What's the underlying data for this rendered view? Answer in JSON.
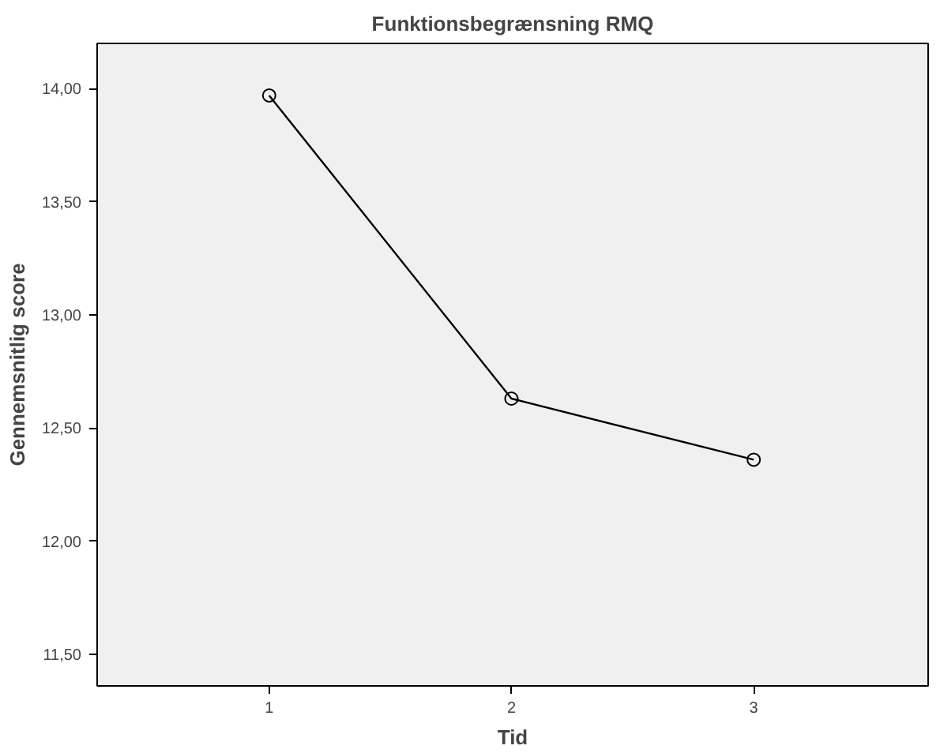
{
  "chart_data": {
    "type": "line",
    "title": "Funktionsbegrænsning RMQ",
    "xlabel": "Tid",
    "ylabel": "Gennemsnitlig score",
    "x": [
      1,
      2,
      3
    ],
    "series": [
      {
        "color": "#000000",
        "values": [
          13.97,
          12.63,
          12.36
        ]
      }
    ],
    "xlim": [
      0.29,
      3.72
    ],
    "xticks": [
      1,
      2,
      3
    ],
    "ylim": [
      11.36,
      14.2
    ],
    "yticks": [
      {
        "value": 11.5,
        "label": "11,50"
      },
      {
        "value": 12,
        "label": "12,00"
      },
      {
        "value": 12.5,
        "label": "12,50"
      },
      {
        "value": 13,
        "label": "13,00"
      },
      {
        "value": 13.5,
        "label": "13,50"
      },
      {
        "value": 14,
        "label": "14,00"
      }
    ],
    "marker": "circle",
    "line_style": "solid",
    "grid": false
  }
}
